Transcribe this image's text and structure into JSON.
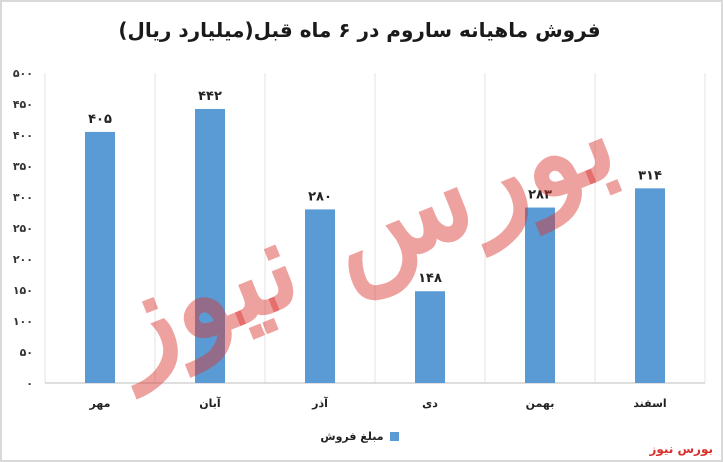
{
  "chart_data": {
    "type": "bar",
    "title": "فروش ماهیانه ساروم در ۶ ماه قبل(میلیارد ریال)",
    "categories": [
      "مهر",
      "آبان",
      "آذر",
      "دی",
      "بهمن",
      "اسفند"
    ],
    "series": [
      {
        "name": "مبلغ فروش",
        "values": [
          405,
          442,
          280,
          148,
          283,
          314
        ]
      }
    ],
    "data_labels": [
      "۴۰۵",
      "۴۴۲",
      "۲۸۰",
      "۱۴۸",
      "۲۸۳",
      "۳۱۴"
    ],
    "ylim": [
      0,
      500
    ],
    "yticks": [
      0,
      50,
      100,
      150,
      200,
      250,
      300,
      350,
      400,
      450,
      500
    ],
    "ytick_labels": [
      "۰",
      "۵۰",
      "۱۰۰",
      "۱۵۰",
      "۲۰۰",
      "۲۵۰",
      "۳۰۰",
      "۳۵۰",
      "۴۰۰",
      "۴۵۰",
      "۵۰۰"
    ],
    "grid": "vertical separators",
    "legend_position": "bottom",
    "colors": {
      "bar": "#5b9bd5"
    }
  },
  "watermark": {
    "text": "بورس نیوز",
    "color": "#d9302c"
  },
  "brand": {
    "text": "بورس نیوز",
    "color": "#d9302c"
  }
}
